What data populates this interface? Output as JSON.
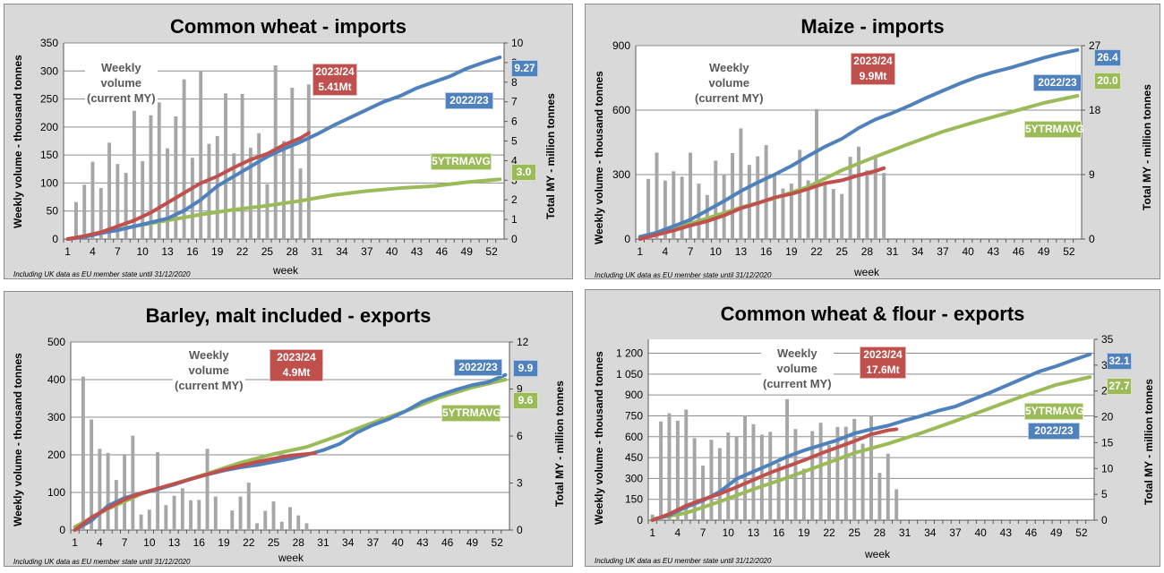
{
  "colors": {
    "bars": "#a6a6a6",
    "series_2023_24": "#c0504d",
    "series_2022_23": "#4f81bd",
    "series_5yr": "#9bbb59",
    "panel_bg": "#d9d9d9",
    "plot_bg": "#ffffff",
    "grid": "#8c8c8c"
  },
  "chart_data": [
    {
      "type": "bar+line",
      "title": "Common wheat - imports",
      "xlabel": "week",
      "ylabel_left": "Weekly volume - thousand tonnes",
      "ylabel_right": "Total MY - million tonnes",
      "footnote": "Including UK data as EU member state until 31/12/2020",
      "weekly_label": [
        "Weekly",
        "volume",
        "(current MY)"
      ],
      "x_ticks": [
        "1",
        "4",
        "7",
        "10",
        "13",
        "16",
        "19",
        "22",
        "25",
        "28",
        "31",
        "34",
        "37",
        "40",
        "43",
        "46",
        "49",
        "52"
      ],
      "ylim_left": [
        0,
        350
      ],
      "yticks_left": [
        "0",
        "50",
        "100",
        "150",
        "200",
        "250",
        "300",
        "350"
      ],
      "ylim_right": [
        0,
        10
      ],
      "yticks_right": [
        "0",
        "1",
        "2",
        "3",
        "4",
        "5",
        "6",
        "7",
        "8",
        "9",
        "10"
      ],
      "grid": true,
      "bars": {
        "name": "Weekly volume (current MY)",
        "weeks": [
          1,
          2,
          3,
          4,
          5,
          6,
          7,
          8,
          9,
          10,
          11,
          12,
          13,
          14,
          15,
          16,
          17,
          18,
          19,
          20,
          21,
          22,
          23,
          24,
          25,
          26,
          27,
          28,
          29,
          30
        ],
        "values": [
          0,
          66,
          97,
          138,
          91,
          172,
          134,
          118,
          229,
          139,
          221,
          244,
          162,
          219,
          285,
          145,
          299,
          170,
          184,
          260,
          153,
          259,
          163,
          189,
          98,
          310,
          175,
          270,
          126,
          276
        ]
      },
      "series": [
        {
          "name": "2023/24",
          "label": "2023/24",
          "sublabel": "5.41Mt",
          "weeks": [
            1,
            3,
            5,
            7,
            9,
            11,
            13,
            15,
            17,
            19,
            21,
            23,
            25,
            27,
            29,
            30
          ],
          "values": [
            0.0,
            0.15,
            0.35,
            0.65,
            0.95,
            1.35,
            1.85,
            2.35,
            2.85,
            3.2,
            3.65,
            4.05,
            4.35,
            4.8,
            5.15,
            5.41
          ]
        },
        {
          "name": "2022/23",
          "label": "2022/23",
          "end_value": "9.27",
          "weeks": [
            1,
            3,
            5,
            7,
            9,
            11,
            13,
            15,
            17,
            19,
            21,
            23,
            25,
            27,
            29,
            31,
            33,
            35,
            37,
            39,
            41,
            43,
            45,
            47,
            49,
            51,
            53
          ],
          "values": [
            0.0,
            0.1,
            0.3,
            0.45,
            0.65,
            0.85,
            1.05,
            1.45,
            2.0,
            2.7,
            3.2,
            3.7,
            4.2,
            4.6,
            4.95,
            5.35,
            5.8,
            6.2,
            6.6,
            7.0,
            7.3,
            7.7,
            8.0,
            8.3,
            8.7,
            9.0,
            9.27
          ]
        },
        {
          "name": "5YTRMAVG",
          "label": "5YTRMAVG",
          "end_value": "3.0",
          "weeks": [
            1,
            5,
            9,
            13,
            17,
            21,
            25,
            29,
            33,
            37,
            41,
            45,
            49,
            53
          ],
          "values": [
            0.0,
            0.3,
            0.65,
            0.95,
            1.25,
            1.5,
            1.7,
            1.95,
            2.25,
            2.45,
            2.6,
            2.7,
            2.9,
            3.05
          ]
        }
      ]
    },
    {
      "type": "bar+line",
      "title": "Maize - imports",
      "xlabel": "week",
      "ylabel_left": "Weekly volume - thousand tonnes",
      "ylabel_right": "Total MY - million tonnes",
      "footnote": "Including UK data as EU member state until 31/12/2020",
      "weekly_label": [
        "Weekly",
        "volume",
        "(current MY)"
      ],
      "x_ticks": [
        "1",
        "4",
        "7",
        "10",
        "13",
        "16",
        "19",
        "22",
        "25",
        "28",
        "31",
        "34",
        "37",
        "40",
        "43",
        "46",
        "49",
        "52"
      ],
      "ylim_left": [
        0,
        900
      ],
      "yticks_left": [
        "0",
        "300",
        "600",
        "900"
      ],
      "ylim_right": [
        0,
        27
      ],
      "yticks_right": [
        "0",
        "9",
        "18",
        "27"
      ],
      "grid": true,
      "bars": {
        "name": "Weekly volume (current MY)",
        "weeks": [
          1,
          2,
          3,
          4,
          5,
          6,
          7,
          8,
          9,
          10,
          11,
          12,
          13,
          14,
          15,
          16,
          17,
          18,
          19,
          20,
          21,
          22,
          23,
          24,
          25,
          26,
          27,
          28,
          29,
          30
        ],
        "values": [
          0,
          280,
          402,
          272,
          315,
          290,
          402,
          258,
          205,
          365,
          300,
          400,
          515,
          345,
          385,
          437,
          305,
          235,
          258,
          415,
          273,
          605,
          265,
          233,
          210,
          383,
          430,
          320,
          378,
          308
        ]
      },
      "series": [
        {
          "name": "2023/24",
          "label": "2023/24",
          "sublabel": "9.9Mt",
          "weeks": [
            1,
            3,
            5,
            7,
            9,
            11,
            13,
            15,
            17,
            19,
            21,
            23,
            25,
            27,
            29,
            30
          ],
          "values": [
            0.0,
            0.6,
            1.2,
            1.9,
            2.5,
            3.3,
            4.3,
            5.0,
            5.8,
            6.3,
            7.0,
            7.8,
            8.2,
            8.9,
            9.5,
            9.9
          ]
        },
        {
          "name": "2022/23",
          "label": "2022/23",
          "end_value": "26.4",
          "weeks": [
            1,
            3,
            5,
            7,
            9,
            11,
            13,
            15,
            17,
            19,
            21,
            23,
            25,
            27,
            29,
            31,
            33,
            35,
            37,
            39,
            41,
            43,
            45,
            47,
            49,
            51,
            53
          ],
          "values": [
            0.3,
            0.9,
            1.8,
            2.7,
            4.0,
            5.3,
            6.7,
            7.9,
            9.0,
            10.2,
            11.6,
            12.9,
            14.0,
            15.5,
            16.7,
            17.6,
            18.6,
            19.7,
            20.7,
            21.7,
            22.6,
            23.3,
            23.9,
            24.6,
            25.3,
            25.9,
            26.4
          ]
        },
        {
          "name": "5YTRMAVG",
          "label": "5YTRMAVG",
          "end_value": "20.0",
          "weeks": [
            1,
            5,
            9,
            13,
            17,
            21,
            25,
            29,
            33,
            37,
            41,
            45,
            49,
            53
          ],
          "values": [
            0.3,
            1.4,
            2.9,
            4.4,
            5.7,
            7.3,
            9.6,
            11.5,
            13.3,
            15.0,
            16.4,
            17.7,
            19.0,
            20.0
          ]
        }
      ]
    },
    {
      "type": "bar+line",
      "title": "Barley, malt included - exports",
      "xlabel": "week",
      "ylabel_left": "Weekly volume - thousand tonnes",
      "ylabel_right": "Total MY - million tonnes",
      "footnote": "Including UK data as EU member state until 31/12/2020",
      "weekly_label": [
        "Weekly",
        "volume",
        "(current MY)"
      ],
      "x_ticks": [
        "1",
        "4",
        "7",
        "10",
        "13",
        "16",
        "19",
        "22",
        "25",
        "28",
        "31",
        "34",
        "37",
        "40",
        "43",
        "46",
        "49",
        "52"
      ],
      "ylim_left": [
        0,
        500
      ],
      "yticks_left": [
        "0",
        "100",
        "200",
        "300",
        "400",
        "500"
      ],
      "ylim_right": [
        0,
        12
      ],
      "yticks_right": [
        "0",
        "3",
        "6",
        "9",
        "12"
      ],
      "grid": true,
      "bars": {
        "name": "Weekly volume (current MY)",
        "weeks": [
          1,
          2,
          3,
          4,
          5,
          6,
          7,
          8,
          9,
          10,
          11,
          12,
          13,
          14,
          15,
          16,
          17,
          18,
          19,
          20,
          21,
          22,
          23,
          24,
          25,
          26,
          27,
          28,
          29,
          30
        ],
        "values": [
          0,
          408,
          294,
          216,
          205,
          133,
          202,
          251,
          41,
          54,
          207,
          66,
          91,
          111,
          79,
          80,
          216,
          89,
          0,
          52,
          89,
          126,
          18,
          51,
          76,
          22,
          61,
          39,
          18,
          0
        ]
      },
      "series": [
        {
          "name": "2023/24",
          "label": "2023/24",
          "sublabel": "4.9Mt",
          "weeks": [
            1,
            3,
            5,
            7,
            9,
            11,
            13,
            15,
            17,
            19,
            21,
            23,
            25,
            27,
            29,
            30
          ],
          "values": [
            0.0,
            0.8,
            1.4,
            1.95,
            2.35,
            2.65,
            2.95,
            3.25,
            3.55,
            3.85,
            4.1,
            4.35,
            4.55,
            4.75,
            4.85,
            4.9
          ]
        },
        {
          "name": "2022/23",
          "label": "2022/23",
          "end_value": "9.9",
          "weeks": [
            1,
            3,
            5,
            7,
            9,
            11,
            13,
            15,
            17,
            19,
            21,
            23,
            25,
            27,
            29,
            31,
            33,
            35,
            37,
            39,
            41,
            43,
            45,
            47,
            49,
            51,
            53
          ],
          "values": [
            0.0,
            0.6,
            1.55,
            2.05,
            2.35,
            2.6,
            2.9,
            3.25,
            3.55,
            3.8,
            4.0,
            4.15,
            4.35,
            4.55,
            4.8,
            5.1,
            5.5,
            6.2,
            6.7,
            7.1,
            7.6,
            8.2,
            8.6,
            8.95,
            9.25,
            9.45,
            9.9
          ]
        },
        {
          "name": "5YTRMAVG",
          "label": "5YTRMAVG",
          "end_value": "9.6",
          "weeks": [
            1,
            5,
            9,
            13,
            17,
            21,
            25,
            29,
            33,
            37,
            41,
            45,
            49,
            53
          ],
          "values": [
            0.2,
            1.35,
            2.3,
            2.95,
            3.6,
            4.3,
            4.85,
            5.3,
            6.05,
            6.85,
            7.6,
            8.45,
            9.1,
            9.6
          ]
        }
      ]
    },
    {
      "type": "bar+line",
      "title": "Common wheat & flour - exports",
      "xlabel": "week",
      "ylabel_left": "Weekly volume - thousand tonnes",
      "ylabel_right": "Total MY - million tonnes",
      "footnote": "Including UK data as EU member state until 31/12/2020",
      "weekly_label": [
        "Weekly",
        "volume",
        "(current MY)"
      ],
      "x_ticks": [
        "1",
        "4",
        "7",
        "10",
        "13",
        "16",
        "19",
        "22",
        "25",
        "28",
        "31",
        "34",
        "37",
        "40",
        "43",
        "46",
        "49",
        "52"
      ],
      "ylim_left": [
        0,
        1300
      ],
      "yticks_left": [
        "0",
        "150",
        "300",
        "450",
        "600",
        "750",
        "900",
        "1 050",
        "1 200"
      ],
      "ylim_right": [
        0,
        35
      ],
      "yticks_right": [
        "0",
        "5",
        "10",
        "15",
        "20",
        "25",
        "30",
        "35"
      ],
      "grid": true,
      "bars": {
        "name": "Weekly volume (current MY)",
        "weeks": [
          1,
          2,
          3,
          4,
          5,
          6,
          7,
          8,
          9,
          10,
          11,
          12,
          13,
          14,
          15,
          16,
          17,
          18,
          19,
          20,
          21,
          22,
          23,
          24,
          25,
          26,
          27,
          28,
          29,
          30
        ],
        "values": [
          40,
          710,
          768,
          715,
          795,
          590,
          392,
          578,
          518,
          630,
          600,
          750,
          690,
          615,
          635,
          410,
          870,
          655,
          370,
          640,
          700,
          540,
          670,
          672,
          728,
          550,
          750,
          340,
          478,
          222
        ]
      },
      "series": [
        {
          "name": "2023/24",
          "label": "2023/24",
          "sublabel": "17.6Mt",
          "weeks": [
            1,
            3,
            5,
            7,
            9,
            11,
            13,
            15,
            17,
            19,
            21,
            23,
            25,
            27,
            29,
            30
          ],
          "values": [
            0.0,
            1.2,
            2.8,
            4.0,
            5.1,
            6.4,
            7.8,
            9.2,
            10.4,
            11.6,
            12.9,
            14.1,
            15.3,
            16.6,
            17.4,
            17.6
          ]
        },
        {
          "name": "2022/23",
          "label": "2022/23",
          "end_value": "32.1",
          "weeks": [
            1,
            3,
            5,
            7,
            9,
            11,
            13,
            15,
            17,
            19,
            21,
            23,
            25,
            27,
            29,
            31,
            33,
            35,
            37,
            39,
            41,
            43,
            45,
            47,
            49,
            51,
            53
          ],
          "values": [
            0.0,
            1.0,
            2.5,
            3.8,
            5.5,
            8.0,
            9.4,
            10.8,
            12.3,
            13.5,
            14.5,
            15.5,
            16.8,
            17.6,
            18.3,
            19.3,
            20.2,
            21.2,
            22.0,
            23.3,
            24.6,
            26.0,
            27.4,
            28.8,
            29.8,
            31.0,
            32.1
          ]
        },
        {
          "name": "5YTRMAVG",
          "label": "5YTRMAVG",
          "end_value": "27.7",
          "weeks": [
            1,
            5,
            9,
            13,
            17,
            21,
            25,
            29,
            33,
            37,
            41,
            45,
            49,
            53
          ],
          "values": [
            0.2,
            1.4,
            3.6,
            6.0,
            8.2,
            10.6,
            13.0,
            14.8,
            16.9,
            19.2,
            21.6,
            24.0,
            26.2,
            27.7
          ]
        }
      ]
    }
  ]
}
